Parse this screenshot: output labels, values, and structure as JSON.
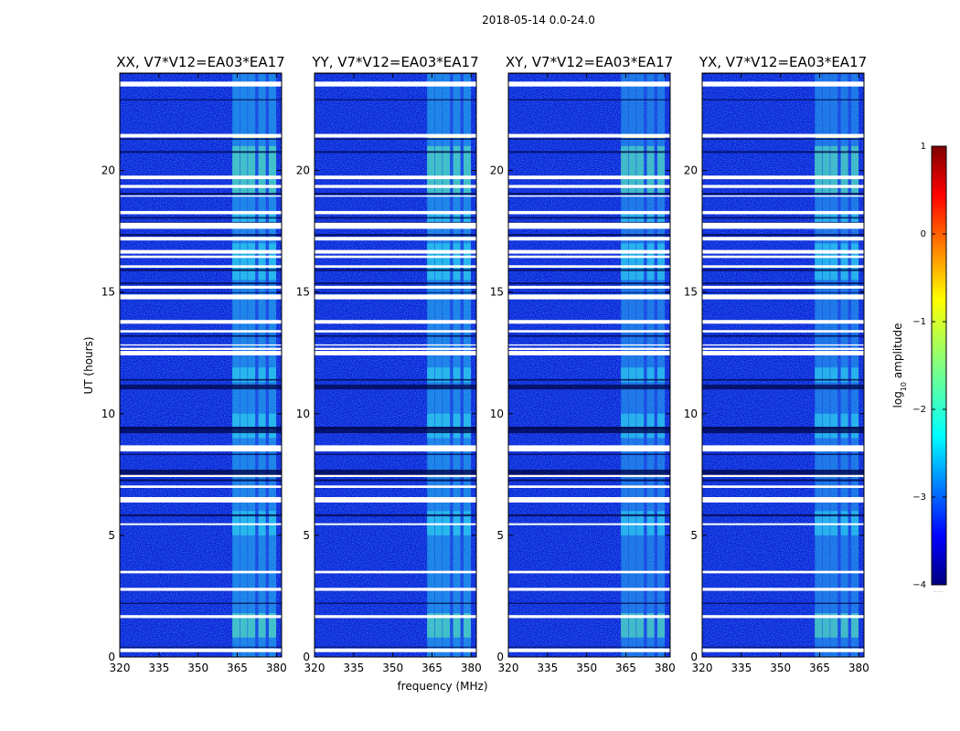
{
  "chart_data": {
    "type": "heatmap",
    "title": "2018-05-14 0.0-24.0",
    "xlabel": "frequency (MHz)",
    "ylabel": "UT (hours)",
    "xlim": [
      320,
      382
    ],
    "ylim": [
      0,
      24
    ],
    "x_ticks": [
      320,
      335,
      350,
      365,
      380
    ],
    "y_ticks": [
      0,
      5,
      10,
      15,
      20
    ],
    "panels": [
      {
        "title": "XX, V7*V12=EA03*EA17"
      },
      {
        "title": "YY, V7*V12=EA03*EA17"
      },
      {
        "title": "XY, V7*V12=EA03*EA17"
      },
      {
        "title": "YX, V7*V12=EA03*EA17"
      }
    ],
    "rfi_band_mhz": [
      363.5,
      380
    ],
    "rfi_channels_mhz": [
      364.5,
      367.5,
      370.5,
      374.5,
      378.5
    ],
    "colorbar": {
      "label": "log",
      "label_sub": "10",
      "label_rest": " amplitude",
      "range": [
        -4,
        1
      ],
      "ticks": [
        1,
        0,
        -1,
        -2,
        -3,
        -4
      ],
      "tick_labels": [
        "1",
        "0",
        "−1",
        "−2",
        "−3",
        "−4"
      ],
      "colormap": "jet",
      "footnote": "......"
    }
  }
}
